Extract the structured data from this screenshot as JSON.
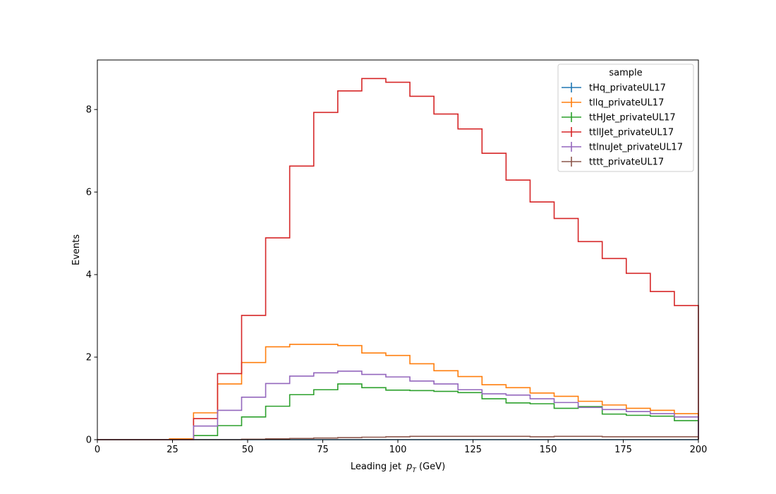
{
  "chart_data": {
    "type": "line",
    "drawstyle": "step-histogram",
    "xlabel_main": "Leading jet ",
    "xlabel_var": "p",
    "xlabel_sub": "T",
    "xlabel_unit": " (GeV)",
    "ylabel": "Events",
    "xlim": [
      0,
      200
    ],
    "ylim": [
      0,
      9.2
    ],
    "xticks": [
      0,
      25,
      50,
      75,
      100,
      125,
      150,
      175,
      200
    ],
    "xtick_labels": [
      "0",
      "25",
      "50",
      "75",
      "100",
      "125",
      "150",
      "175",
      "200"
    ],
    "yticks": [
      0,
      2,
      4,
      6,
      8
    ],
    "ytick_labels": [
      "0",
      "2",
      "4",
      "6",
      "8"
    ],
    "bin_edges": [
      0,
      8,
      16,
      24,
      32,
      40,
      48,
      56,
      64,
      72,
      80,
      88,
      96,
      104,
      112,
      120,
      128,
      136,
      144,
      152,
      160,
      168,
      176,
      184,
      192,
      200
    ],
    "grid": false,
    "legend": {
      "title": "sample",
      "position": "top-right"
    },
    "series": [
      {
        "name": "tHq_privateUL17",
        "color": "#1f77b4",
        "values": [
          0,
          0,
          0,
          0,
          0,
          0,
          0,
          0,
          0,
          0,
          0,
          0,
          0,
          0,
          0,
          0,
          0,
          0,
          0,
          0,
          0,
          0,
          0,
          0,
          0
        ]
      },
      {
        "name": "tllq_privateUL17",
        "color": "#ff7f0e",
        "values": [
          0,
          0,
          0,
          0.02,
          0.65,
          1.35,
          1.87,
          2.25,
          2.31,
          2.31,
          2.28,
          2.1,
          2.04,
          1.84,
          1.67,
          1.53,
          1.33,
          1.26,
          1.13,
          1.05,
          0.93,
          0.84,
          0.76,
          0.71,
          0.63
        ]
      },
      {
        "name": "ttHJet_privateUL17",
        "color": "#2ca02c",
        "values": [
          0,
          0,
          0,
          0,
          0.1,
          0.34,
          0.55,
          0.81,
          1.09,
          1.21,
          1.35,
          1.26,
          1.2,
          1.19,
          1.17,
          1.14,
          0.99,
          0.89,
          0.87,
          0.76,
          0.8,
          0.62,
          0.59,
          0.57,
          0.46
        ]
      },
      {
        "name": "ttllJet_privateUL17",
        "color": "#d62728",
        "values": [
          0,
          0,
          0,
          0,
          0.51,
          1.6,
          3.01,
          4.89,
          6.63,
          7.93,
          8.45,
          8.75,
          8.66,
          8.32,
          7.89,
          7.53,
          6.94,
          6.29,
          5.76,
          5.36,
          4.8,
          4.39,
          4.03,
          3.59,
          3.25
        ]
      },
      {
        "name": "ttlnuJet_privateUL17",
        "color": "#9467bd",
        "values": [
          0,
          0,
          0,
          0,
          0.33,
          0.71,
          1.03,
          1.36,
          1.54,
          1.62,
          1.66,
          1.58,
          1.52,
          1.42,
          1.35,
          1.21,
          1.11,
          1.08,
          0.99,
          0.9,
          0.78,
          0.73,
          0.68,
          0.63,
          0.55
        ]
      },
      {
        "name": "tttt_privateUL17",
        "color": "#8c564b",
        "values": [
          0,
          0,
          0,
          0,
          0,
          0,
          0.01,
          0.02,
          0.03,
          0.04,
          0.05,
          0.06,
          0.07,
          0.08,
          0.08,
          0.08,
          0.08,
          0.08,
          0.07,
          0.08,
          0.08,
          0.07,
          0.07,
          0.07,
          0.07
        ]
      }
    ]
  }
}
